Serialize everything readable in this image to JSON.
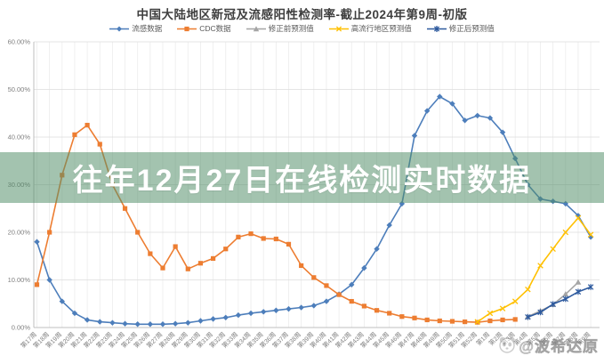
{
  "banner": {
    "text": "往年12月27日在线检测实时数据"
  },
  "watermark": {
    "icon": "panda-icon",
    "text": "@波希达原"
  },
  "chart_data": {
    "type": "line",
    "title": "中国大陆地区新冠及流感阳性检测率-截止2024年第9周-初版",
    "xlabel": "",
    "ylabel": "",
    "ylim": [
      0,
      60
    ],
    "ytick_step": 10,
    "ytick_labels": [
      "0.00%",
      "10.00%",
      "20.00%",
      "30.00%",
      "40.00%",
      "50.00%",
      "60.00%"
    ],
    "grid": true,
    "legend_position": "top",
    "categories": [
      "第17周",
      "第18周",
      "第19周",
      "第20周",
      "第21周",
      "第22周",
      "第23周",
      "第24周",
      "第25周",
      "第26周",
      "第27周",
      "第28周",
      "第29周",
      "第30周",
      "第31周",
      "第32周",
      "第33周",
      "第34周",
      "第35周",
      "第36周",
      "第37周",
      "第38周",
      "第39周",
      "第40周",
      "第41周",
      "第42周",
      "第43周",
      "第44周",
      "第45周",
      "第46周",
      "第47周",
      "第48周",
      "第49周",
      "第50周",
      "第51周",
      "第52周",
      "第1周",
      "第2周",
      "第3周",
      "第4周",
      "第5周",
      "第6周",
      "第7周",
      "第8周",
      "第9周"
    ],
    "series": [
      {
        "name": "流感数据",
        "color": "#4d7ebb",
        "marker": "diamond",
        "values": [
          18,
          10,
          5.5,
          3,
          1.6,
          1.2,
          1,
          0.8,
          0.7,
          0.7,
          0.7,
          0.8,
          1,
          1.4,
          1.8,
          2.1,
          2.6,
          3,
          3.3,
          3.6,
          3.9,
          4.2,
          4.6,
          5.5,
          7,
          9,
          12.5,
          16.5,
          21.5,
          26,
          40.3,
          45.5,
          48.5,
          47,
          43.5,
          44.5,
          44,
          41,
          35.5,
          30,
          27,
          26.5,
          26,
          23.5,
          19
        ]
      },
      {
        "name": "CDC数据",
        "color": "#ed7d31",
        "marker": "square",
        "values": [
          9,
          20,
          32,
          40.5,
          42.5,
          38.5,
          30,
          25,
          20,
          15.5,
          12.5,
          17,
          12.3,
          13.5,
          14.5,
          16.5,
          19,
          19.7,
          18.7,
          18.6,
          17.5,
          13,
          10.5,
          8.8,
          6.9,
          5.5,
          4.5,
          3.6,
          3,
          2.3,
          2,
          1.6,
          1.4,
          1.3,
          1.2,
          1.1,
          1.4,
          1.6,
          1.7,
          null,
          null,
          null,
          null,
          null,
          null
        ]
      },
      {
        "name": "修正前预测值",
        "color": "#a5a5a5",
        "marker": "triangle",
        "values": [
          null,
          null,
          null,
          null,
          null,
          null,
          null,
          null,
          null,
          null,
          null,
          null,
          null,
          null,
          null,
          null,
          null,
          null,
          null,
          null,
          null,
          null,
          null,
          null,
          null,
          null,
          null,
          null,
          null,
          null,
          null,
          null,
          null,
          null,
          null,
          null,
          null,
          null,
          null,
          2.3,
          3.5,
          4.8,
          7,
          9.5,
          null
        ]
      },
      {
        "name": "高流行地区预测值",
        "color": "#ffc000",
        "marker": "x",
        "values": [
          null,
          null,
          null,
          null,
          null,
          null,
          null,
          null,
          null,
          null,
          null,
          null,
          null,
          null,
          null,
          null,
          null,
          null,
          null,
          null,
          null,
          null,
          null,
          null,
          null,
          null,
          null,
          null,
          null,
          null,
          null,
          null,
          null,
          null,
          null,
          1.2,
          3,
          4,
          5.5,
          8,
          13,
          16.5,
          20,
          23,
          19.5
        ]
      },
      {
        "name": "修正后预测值",
        "color": "#2e5a9e",
        "marker": "star",
        "values": [
          null,
          null,
          null,
          null,
          null,
          null,
          null,
          null,
          null,
          null,
          null,
          null,
          null,
          null,
          null,
          null,
          null,
          null,
          null,
          null,
          null,
          null,
          null,
          null,
          null,
          null,
          null,
          null,
          null,
          null,
          null,
          null,
          null,
          null,
          null,
          null,
          null,
          null,
          null,
          2.2,
          3.2,
          4.9,
          6,
          7.5,
          8.5
        ]
      }
    ]
  }
}
